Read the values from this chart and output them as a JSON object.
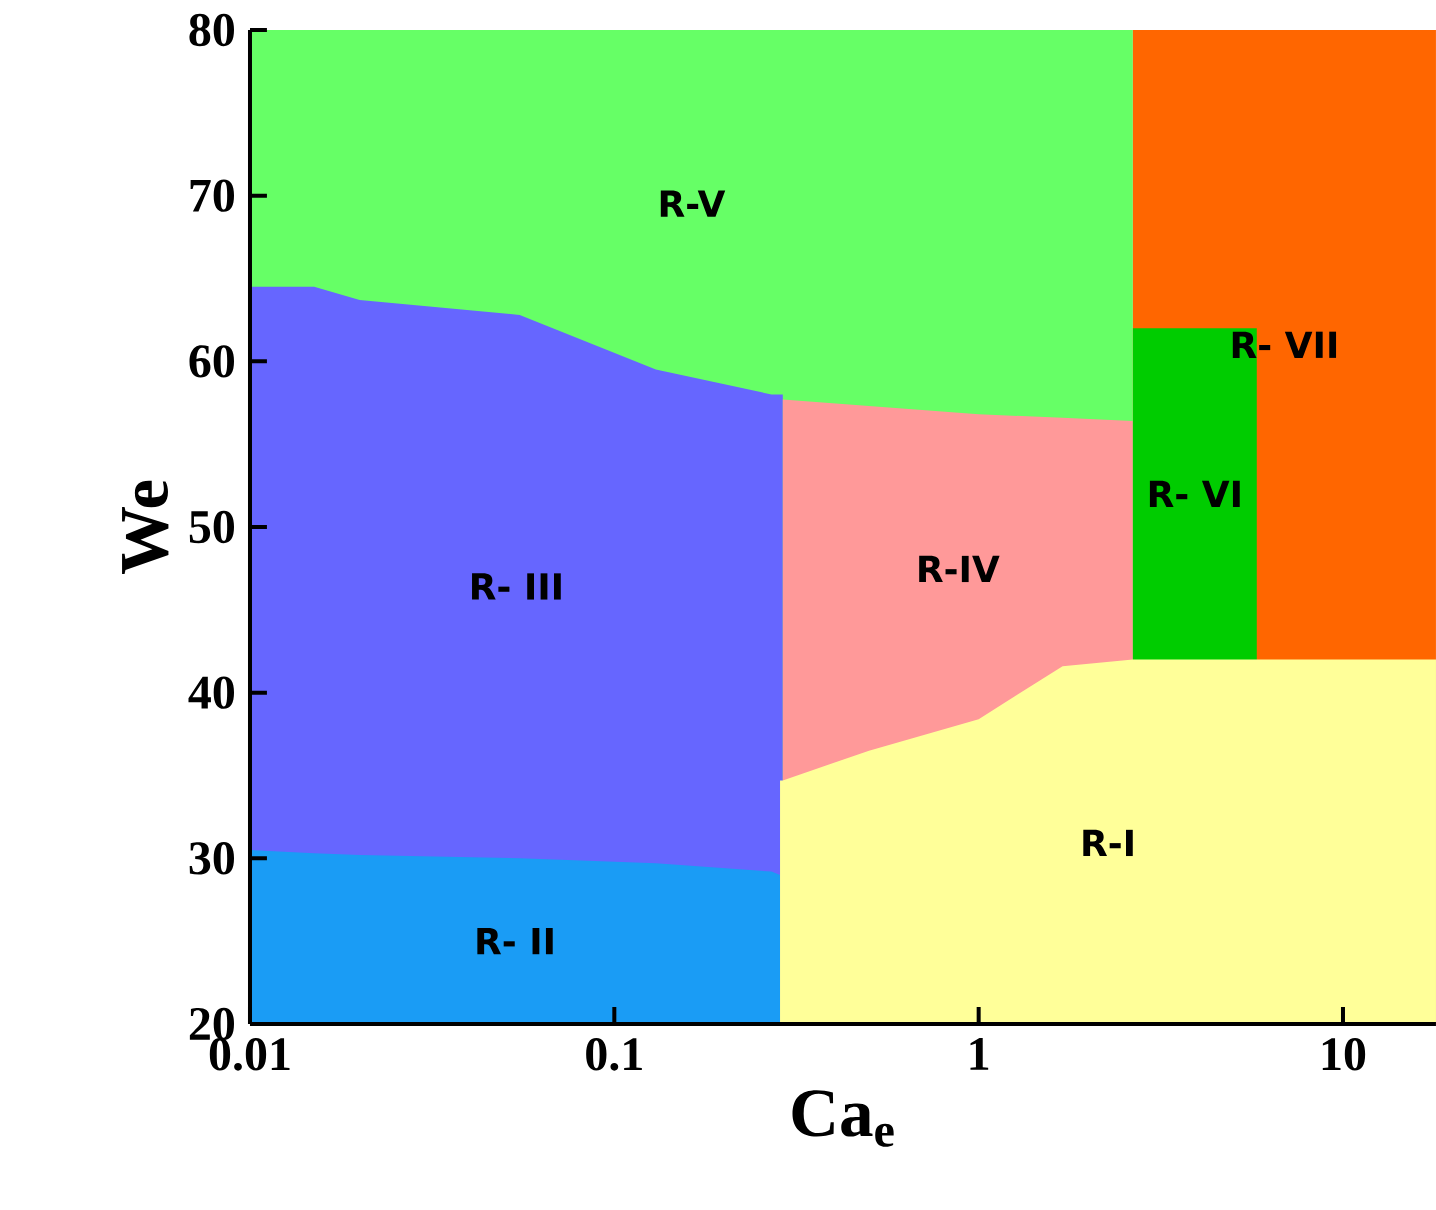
{
  "chart_data": {
    "type": "area",
    "log": "x",
    "xlabel": "Ca$_{e}$",
    "ylabel": "We",
    "series": [
      {
        "name": "R-V",
        "color": "#66ff66",
        "x": [
          0.01,
          0.015,
          0.02,
          0.055,
          0.13,
          0.27,
          0.29,
          0.5,
          1,
          1.7,
          2.65
        ],
        "values": [
          80,
          80,
          80,
          80,
          80,
          80,
          80,
          80,
          80,
          80,
          80
        ]
      },
      {
        "name": "R- VII",
        "color": "#ff6600",
        "x": [
          2.65,
          5.8,
          5.85,
          18
        ],
        "values": [
          80,
          80,
          80,
          80
        ]
      },
      {
        "name": "R- III",
        "color": "#6666ff",
        "x": [
          0.01,
          0.015,
          0.02,
          0.055,
          0.13,
          0.27,
          0.29
        ],
        "values": [
          64.5,
          64.5,
          63.7,
          62.8,
          59.5,
          58,
          58
        ]
      },
      {
        "name": "R-IV",
        "color": "#ff9999",
        "x": [
          0.29,
          0.5,
          1,
          1.7,
          2.65
        ],
        "values": [
          57.7,
          57.3,
          56.8,
          56.6,
          56.4
        ]
      },
      {
        "name": "R- VI",
        "color": "#00cc00",
        "x": [
          2.65,
          5.8
        ],
        "values": [
          62,
          62
        ]
      },
      {
        "name": "R- II",
        "color": "#1a9cf5",
        "x": [
          0.01,
          0.015,
          0.02,
          0.055,
          0.13,
          0.27,
          0.285
        ],
        "values": [
          30.5,
          30.3,
          30.2,
          30.0,
          29.7,
          29.2,
          29.0
        ]
      },
      {
        "name": "R-I",
        "color": "#ffff99",
        "x": [
          0.285,
          0.29,
          0.5,
          1,
          1.7,
          2.65,
          5.8,
          18
        ],
        "values": [
          34.7,
          34.7,
          36.5,
          38.4,
          41.6,
          42,
          42,
          42
        ]
      }
    ],
    "xlim": [
      0.01,
      18
    ],
    "ylim": [
      20,
      80
    ],
    "xticks": [
      0.01,
      0.1,
      1,
      10
    ],
    "yticks": [
      20,
      30,
      40,
      50,
      60,
      70,
      80
    ],
    "legend": false
  }
}
